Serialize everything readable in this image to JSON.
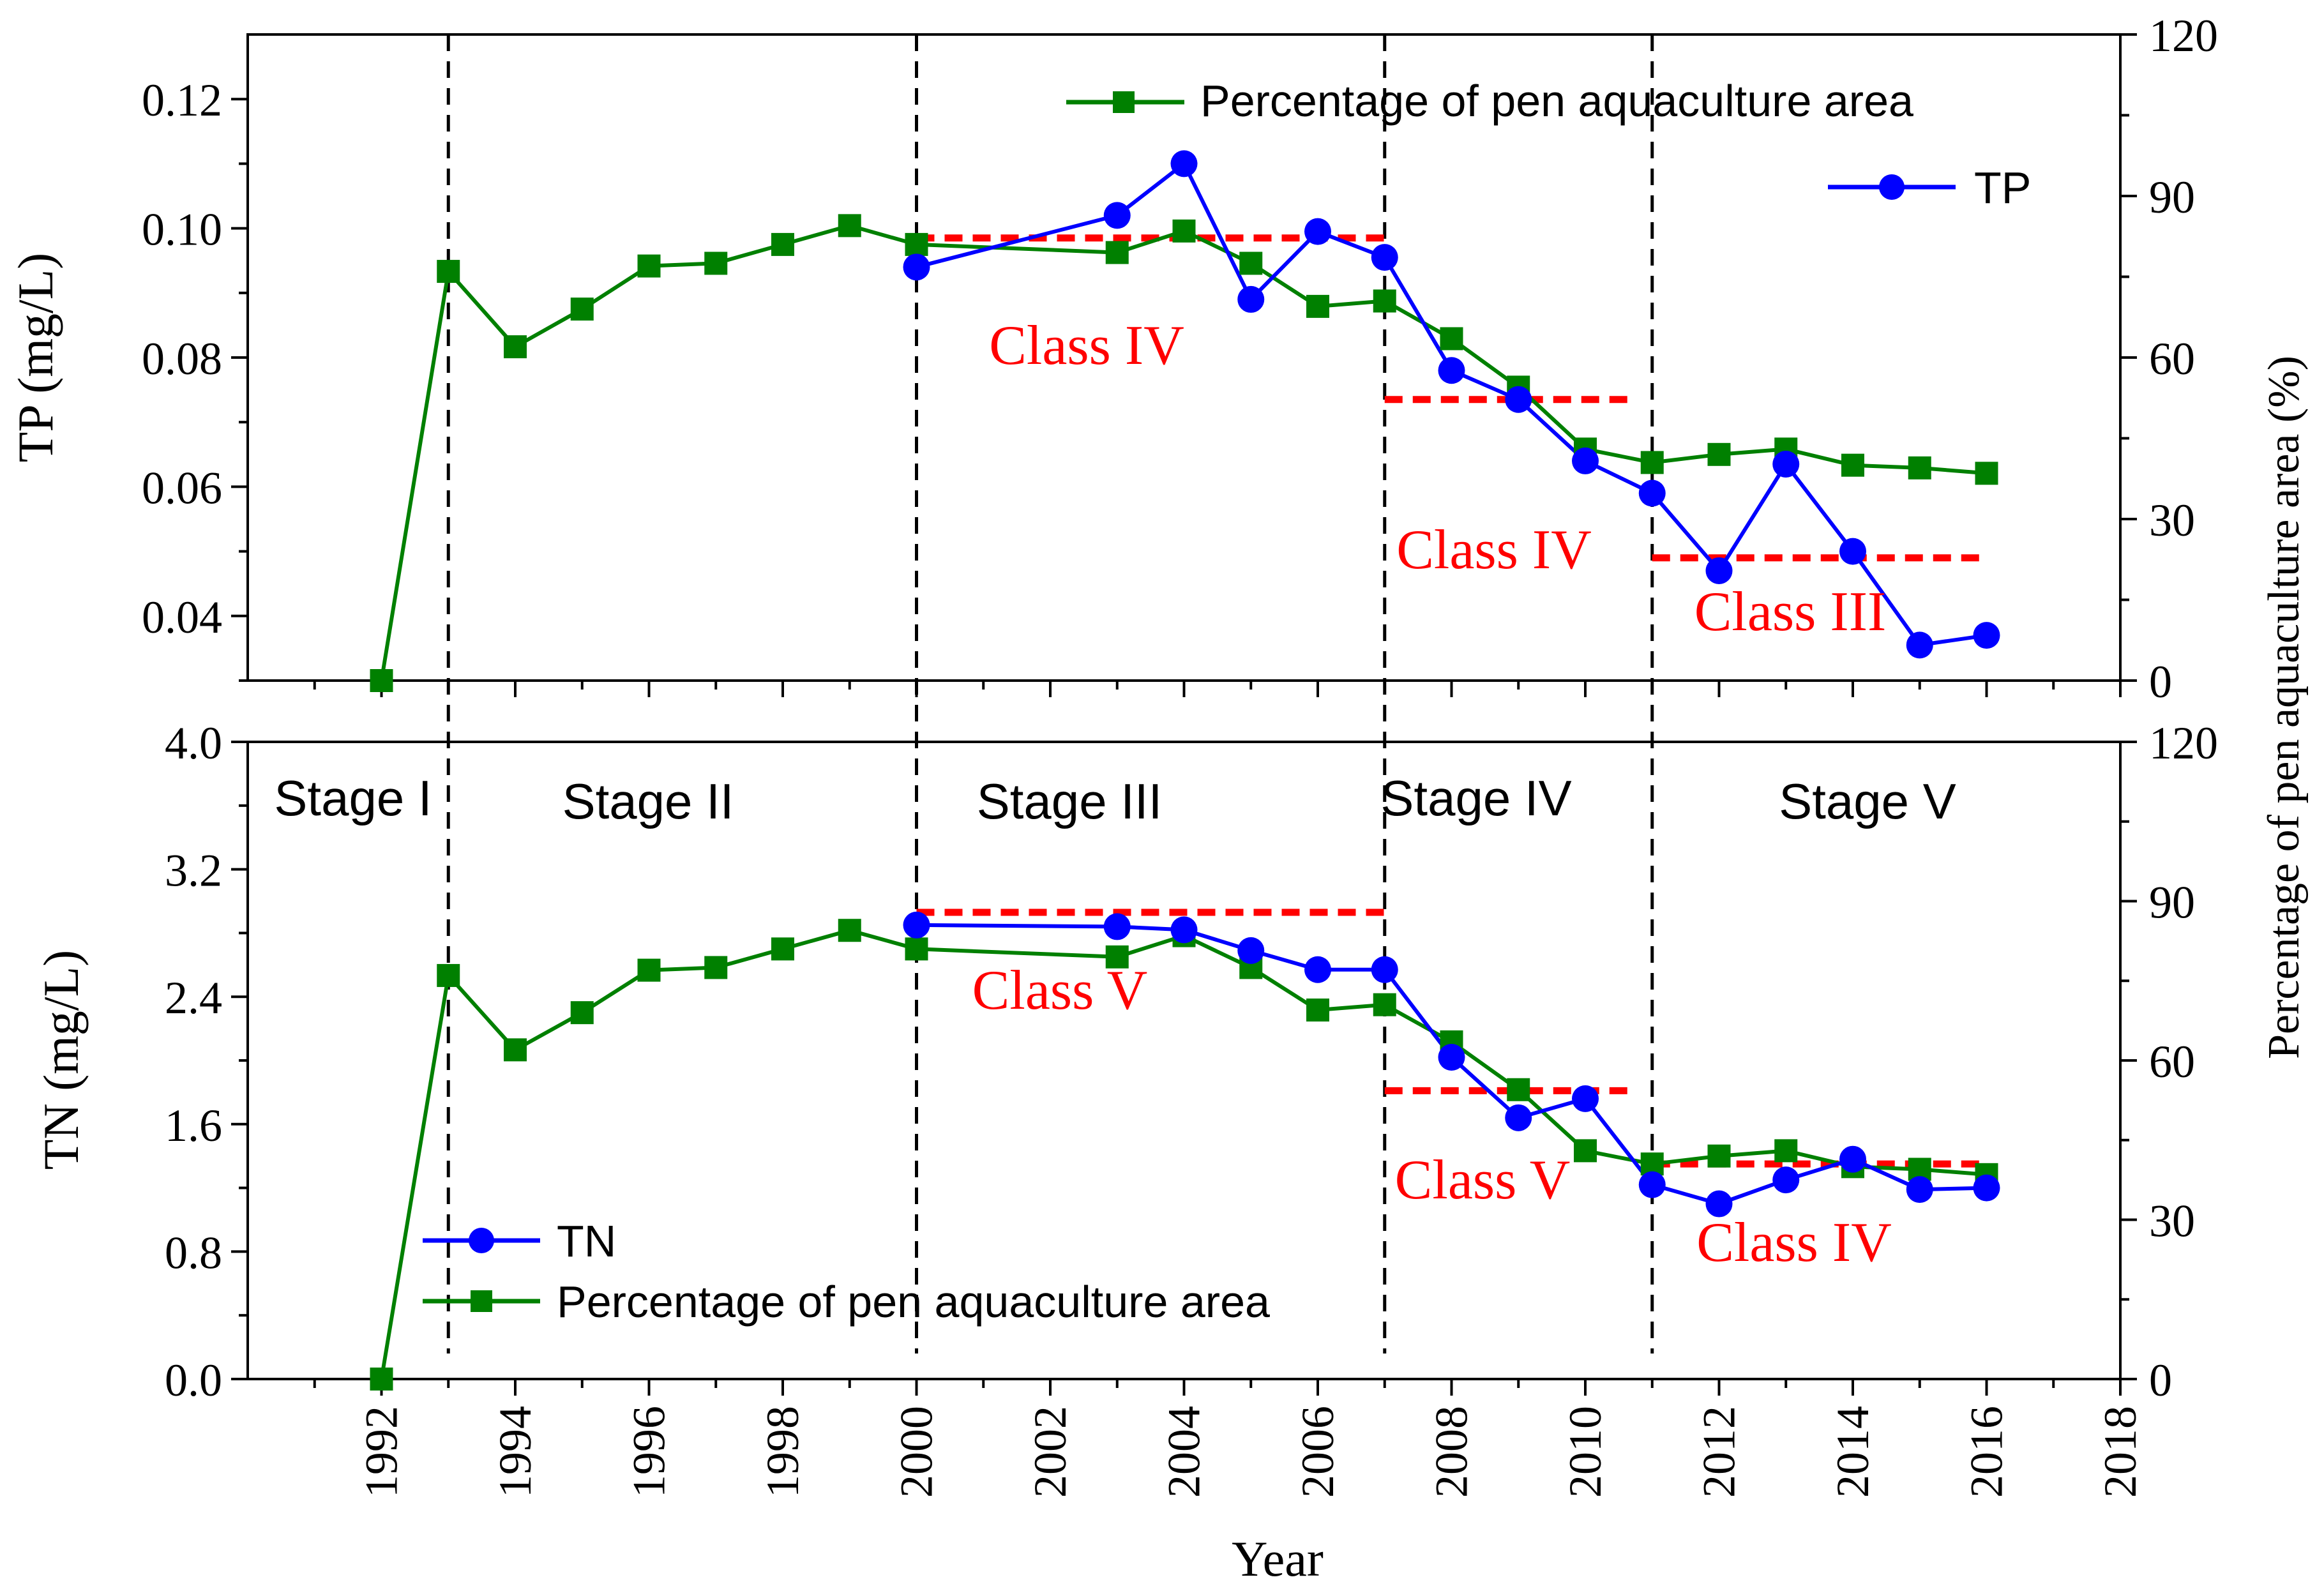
{
  "chart_data": [
    {
      "id": "tp",
      "type": "line",
      "ylabel": "TP (mg/L)",
      "ylim": [
        0.03,
        0.13
      ],
      "yticks": [
        "0.04",
        "0.06",
        "0.08",
        "0.10",
        "0.12"
      ],
      "xlim": [
        1990,
        2018
      ],
      "y2label": "Percentage of pen aquaculture area (%)",
      "y2lim": [
        0,
        120
      ],
      "y2ticks": [
        "0",
        "30",
        "60",
        "90",
        "120"
      ],
      "series": [
        {
          "name": "Percentage of pen aquaculture area",
          "axis": "right",
          "color": "#008000",
          "marker": "square",
          "x": [
            1992,
            1993,
            1994,
            1995,
            1996,
            1997,
            1998,
            1999,
            2000,
            2003,
            2004,
            2005,
            2006,
            2007,
            2008,
            2009,
            2010,
            2011,
            2012,
            2013,
            2014,
            2015,
            2016
          ],
          "values": [
            0,
            76,
            62,
            69,
            77,
            77.5,
            81,
            84.5,
            81,
            79.5,
            83.5,
            77.5,
            69.5,
            70.5,
            63.5,
            54.5,
            43,
            40.5,
            42,
            43,
            40,
            39.5,
            38.5
          ]
        },
        {
          "name": "TP",
          "axis": "left",
          "color": "#0000ff",
          "marker": "circle",
          "x": [
            2000,
            2003,
            2004,
            2005,
            2006,
            2007,
            2008,
            2009,
            2010,
            2011,
            2012,
            2013,
            2014,
            2015,
            2016
          ],
          "values": [
            0.094,
            0.102,
            0.11,
            0.089,
            0.0995,
            0.0955,
            0.078,
            0.0735,
            0.064,
            0.059,
            0.047,
            0.0635,
            0.05,
            0.0355,
            0.037
          ]
        }
      ],
      "thresholds": [
        {
          "x": [
            2000,
            2007
          ],
          "y": 0.0985,
          "label": "Class IV"
        },
        {
          "x": [
            2007,
            2010.7
          ],
          "y": 0.0735,
          "label": "Class IV"
        },
        {
          "x": [
            2011,
            2016
          ],
          "y": 0.049,
          "label": "Class III"
        }
      ],
      "legend": [
        "Percentage of pen aquaculture area",
        "TP"
      ],
      "legend_position": "top-right"
    },
    {
      "id": "tn",
      "type": "line",
      "xlabel": "Year",
      "ylabel": "TN (mg/L)",
      "ylim": [
        0,
        4.0
      ],
      "yticks": [
        "0.0",
        "0.8",
        "1.6",
        "2.4",
        "3.2",
        "4.0"
      ],
      "xlim": [
        1990,
        2018
      ],
      "xticks": [
        "1992",
        "1994",
        "1996",
        "1998",
        "2000",
        "2002",
        "2004",
        "2006",
        "2008",
        "2010",
        "2012",
        "2014",
        "2016",
        "2018"
      ],
      "y2label": "Percentage of pen aquaculture area (%)",
      "y2lim": [
        0,
        120
      ],
      "y2ticks": [
        "0",
        "30",
        "60",
        "90",
        "120"
      ],
      "series": [
        {
          "name": "Percentage of pen aquaculture area",
          "axis": "right",
          "color": "#008000",
          "marker": "square",
          "x": [
            1992,
            1993,
            1994,
            1995,
            1996,
            1997,
            1998,
            1999,
            2000,
            2003,
            2004,
            2005,
            2006,
            2007,
            2008,
            2009,
            2010,
            2011,
            2012,
            2013,
            2014,
            2015,
            2016
          ],
          "values": [
            0,
            76,
            62,
            69,
            77,
            77.5,
            81,
            84.5,
            81,
            79.5,
            83.5,
            77.5,
            69.5,
            70.5,
            63.5,
            54.5,
            43,
            40.5,
            42,
            43,
            40,
            39.5,
            38.5
          ]
        },
        {
          "name": "TN",
          "axis": "left",
          "color": "#0000ff",
          "marker": "circle",
          "x": [
            2000,
            2003,
            2004,
            2005,
            2006,
            2007,
            2008,
            2009,
            2010,
            2011,
            2012,
            2013,
            2014,
            2015,
            2016
          ],
          "values": [
            2.85,
            2.84,
            2.82,
            2.69,
            2.57,
            2.57,
            2.02,
            1.64,
            1.76,
            1.22,
            1.1,
            1.25,
            1.38,
            1.19,
            1.2
          ]
        }
      ],
      "thresholds": [
        {
          "x": [
            2000,
            2007
          ],
          "y": 2.93,
          "label": "Class V"
        },
        {
          "x": [
            2007,
            2010.7
          ],
          "y": 1.81,
          "label": "Class V"
        },
        {
          "x": [
            2011,
            2016
          ],
          "y": 1.35,
          "label": "Class IV"
        }
      ],
      "legend": [
        "TN",
        "Percentage of pen aquaculture area"
      ],
      "legend_position": "bottom-left"
    }
  ],
  "stages": [
    {
      "label": "Stage I"
    },
    {
      "label": "Stage II"
    },
    {
      "label": "Stage III"
    },
    {
      "label": "Stage IV"
    },
    {
      "label": "Stage V"
    }
  ],
  "stage_boundaries": [
    1993,
    2000,
    2007,
    2011
  ],
  "colors": {
    "pen_area": "#008000",
    "tp_tn": "#0000ff",
    "threshold": "#ff0000",
    "axis": "#000000"
  }
}
